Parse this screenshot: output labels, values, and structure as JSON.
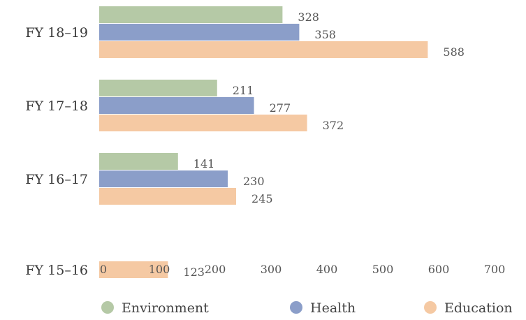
{
  "chart_data": {
    "type": "bar",
    "orientation": "horizontal",
    "title": "",
    "xlabel": "",
    "ylabel": "",
    "categories": [
      "FY 18–19",
      "FY 17–18",
      "FY 16–17",
      "FY 15–16"
    ],
    "series": [
      {
        "name": "Environment",
        "color": "#b5c9a6",
        "values": [
          328,
          211,
          141,
          null
        ]
      },
      {
        "name": "Health",
        "color": "#8b9ec9",
        "values": [
          358,
          277,
          230,
          null
        ]
      },
      {
        "name": "Education",
        "color": "#f5c9a3",
        "values": [
          588,
          372,
          245,
          123
        ]
      }
    ],
    "xlim": [
      0,
      700
    ],
    "xticks": [
      0,
      100,
      200,
      300,
      400,
      500,
      600,
      700
    ],
    "grid": false,
    "legend_position": "bottom"
  }
}
